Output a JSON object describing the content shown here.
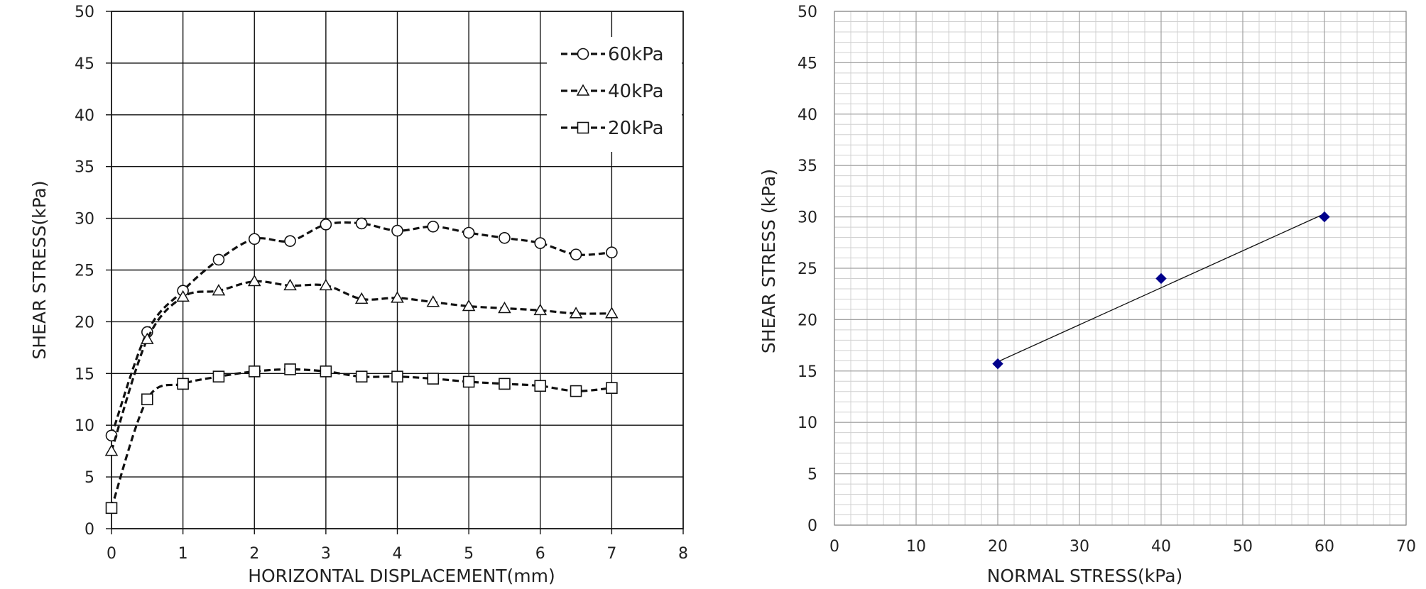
{
  "chart_data": [
    {
      "type": "line",
      "xlabel": "HORIZONTAL DISPLACEMENT(mm)",
      "ylabel": "SHEAR STRESS(kPa)",
      "xlim": [
        0,
        8
      ],
      "ylim": [
        0,
        50
      ],
      "xticks": [
        "0",
        "1",
        "2",
        "3",
        "4",
        "5",
        "6",
        "7",
        "8"
      ],
      "yticks": [
        "0",
        "5",
        "10",
        "15",
        "20",
        "25",
        "30",
        "35",
        "40",
        "45",
        "50"
      ],
      "grid": true,
      "legend_position": "top-right",
      "series": [
        {
          "name": "60kPa",
          "marker": "circle",
          "x": [
            0,
            0.5,
            1,
            1.5,
            2,
            2.5,
            3,
            3.5,
            4,
            4.5,
            5,
            5.5,
            6,
            6.5,
            7
          ],
          "y": [
            9,
            19,
            23,
            26,
            28,
            27.8,
            29.4,
            29.5,
            28.8,
            29.2,
            28.6,
            28.1,
            27.6,
            26.5,
            26.7
          ]
        },
        {
          "name": "40kPa",
          "marker": "triangle",
          "x": [
            0,
            0.5,
            1,
            1.5,
            2,
            2.5,
            3,
            3.5,
            4,
            4.5,
            5,
            5.5,
            6,
            6.5,
            7
          ],
          "y": [
            7.5,
            18.3,
            22.4,
            23,
            23.9,
            23.5,
            23.5,
            22.2,
            22.3,
            21.9,
            21.5,
            21.3,
            21.1,
            20.8,
            20.8
          ]
        },
        {
          "name": "20kPa",
          "marker": "square",
          "x": [
            0,
            0.5,
            1,
            1.5,
            2,
            2.5,
            3,
            3.5,
            4,
            4.5,
            5,
            5.5,
            6,
            6.5,
            7
          ],
          "y": [
            2,
            12.5,
            14,
            14.7,
            15.2,
            15.4,
            15.2,
            14.7,
            14.7,
            14.5,
            14.2,
            14,
            13.8,
            13.3,
            13.6
          ]
        }
      ]
    },
    {
      "type": "scatter",
      "xlabel": "NORMAL STRESS(kPa)",
      "ylabel": "SHEAR STRESS (kPa)",
      "xlim": [
        0,
        70
      ],
      "ylim": [
        0,
        50
      ],
      "xticks": [
        "0",
        "10",
        "20",
        "30",
        "40",
        "50",
        "60",
        "70"
      ],
      "yticks": [
        "0",
        "5",
        "10",
        "15",
        "20",
        "25",
        "30",
        "35",
        "40",
        "45",
        "50"
      ],
      "grid": true,
      "points": {
        "x": [
          20,
          40,
          60
        ],
        "y": [
          15.7,
          24,
          30
        ]
      },
      "trendline": {
        "x": [
          20,
          60
        ],
        "y": [
          15.9,
          30.3
        ]
      },
      "point_color": "#00008b"
    }
  ]
}
